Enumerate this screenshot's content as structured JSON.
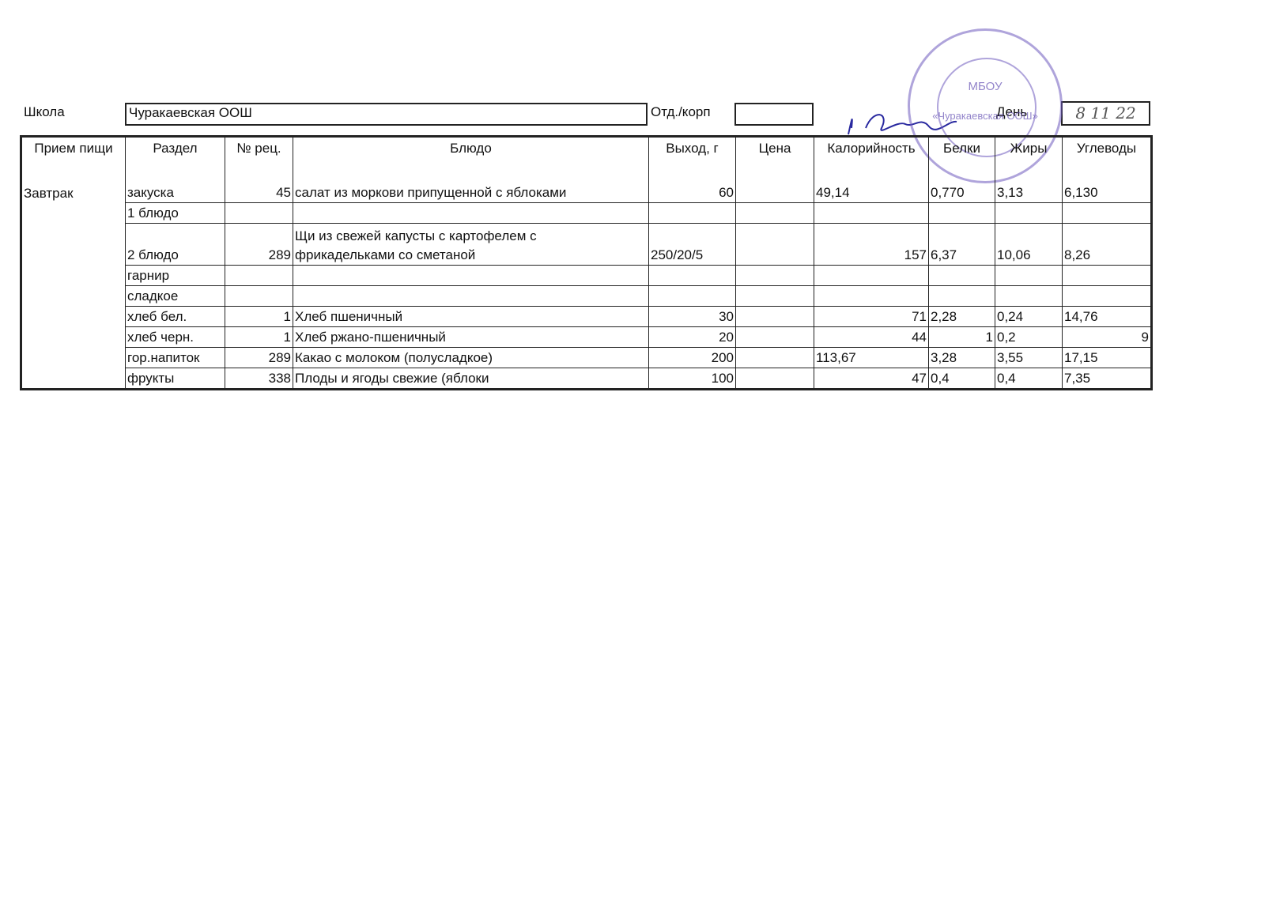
{
  "header": {
    "school_label": "Школа",
    "school": "Чуракаевская ООШ",
    "dept_label": "Отд./корп",
    "day_label": "День",
    "day": "8 11 22"
  },
  "stamp": {
    "org": "МБОУ",
    "name": "«Чуракаевская ООШ»"
  },
  "table": {
    "columns": [
      "Прием пищи",
      "Раздел",
      "№ рец.",
      "Блюдо",
      "Выход, г",
      "Цена",
      "Калорийность",
      "Белки",
      "Жиры",
      "Углеводы"
    ],
    "rows": [
      [
        "Завтрак",
        "закуска",
        "45",
        "салат из моркови припущенной с яблоками",
        "60",
        null,
        "49,14",
        "0,770",
        "3,13",
        "6,130"
      ],
      [
        null,
        "1 блюдо",
        null,
        null,
        null,
        null,
        null,
        null,
        null,
        null
      ],
      [
        null,
        "2 блюдо",
        "289",
        "Щи из свежей капусты с картофелем с фрикадельками со сметаной",
        "250/20/5",
        null,
        "157",
        "6,37",
        "10,06",
        "8,26"
      ],
      [
        null,
        "гарнир",
        null,
        null,
        null,
        null,
        null,
        null,
        null,
        null
      ],
      [
        null,
        "сладкое",
        null,
        null,
        null,
        null,
        null,
        null,
        null,
        null
      ],
      [
        null,
        "хлеб бел.",
        "1",
        "Хлеб пшеничный",
        "30",
        null,
        "71",
        "2,28",
        "0,24",
        "14,76"
      ],
      [
        null,
        "хлеб черн.",
        "1",
        "Хлеб ржано-пшеничный",
        "20",
        null,
        "44",
        "1",
        "0,2",
        "9"
      ],
      [
        null,
        "гор.напиток",
        "289",
        "Какао с молоком (полусладкое)",
        "200",
        null,
        "113,67",
        "3,28",
        "3,55",
        "17,15"
      ],
      [
        null,
        "фрукты",
        "338",
        "Плоды и ягоды свежие (яблоки",
        "100",
        null,
        "47",
        "0,4",
        "0,4",
        "7,35"
      ]
    ]
  }
}
